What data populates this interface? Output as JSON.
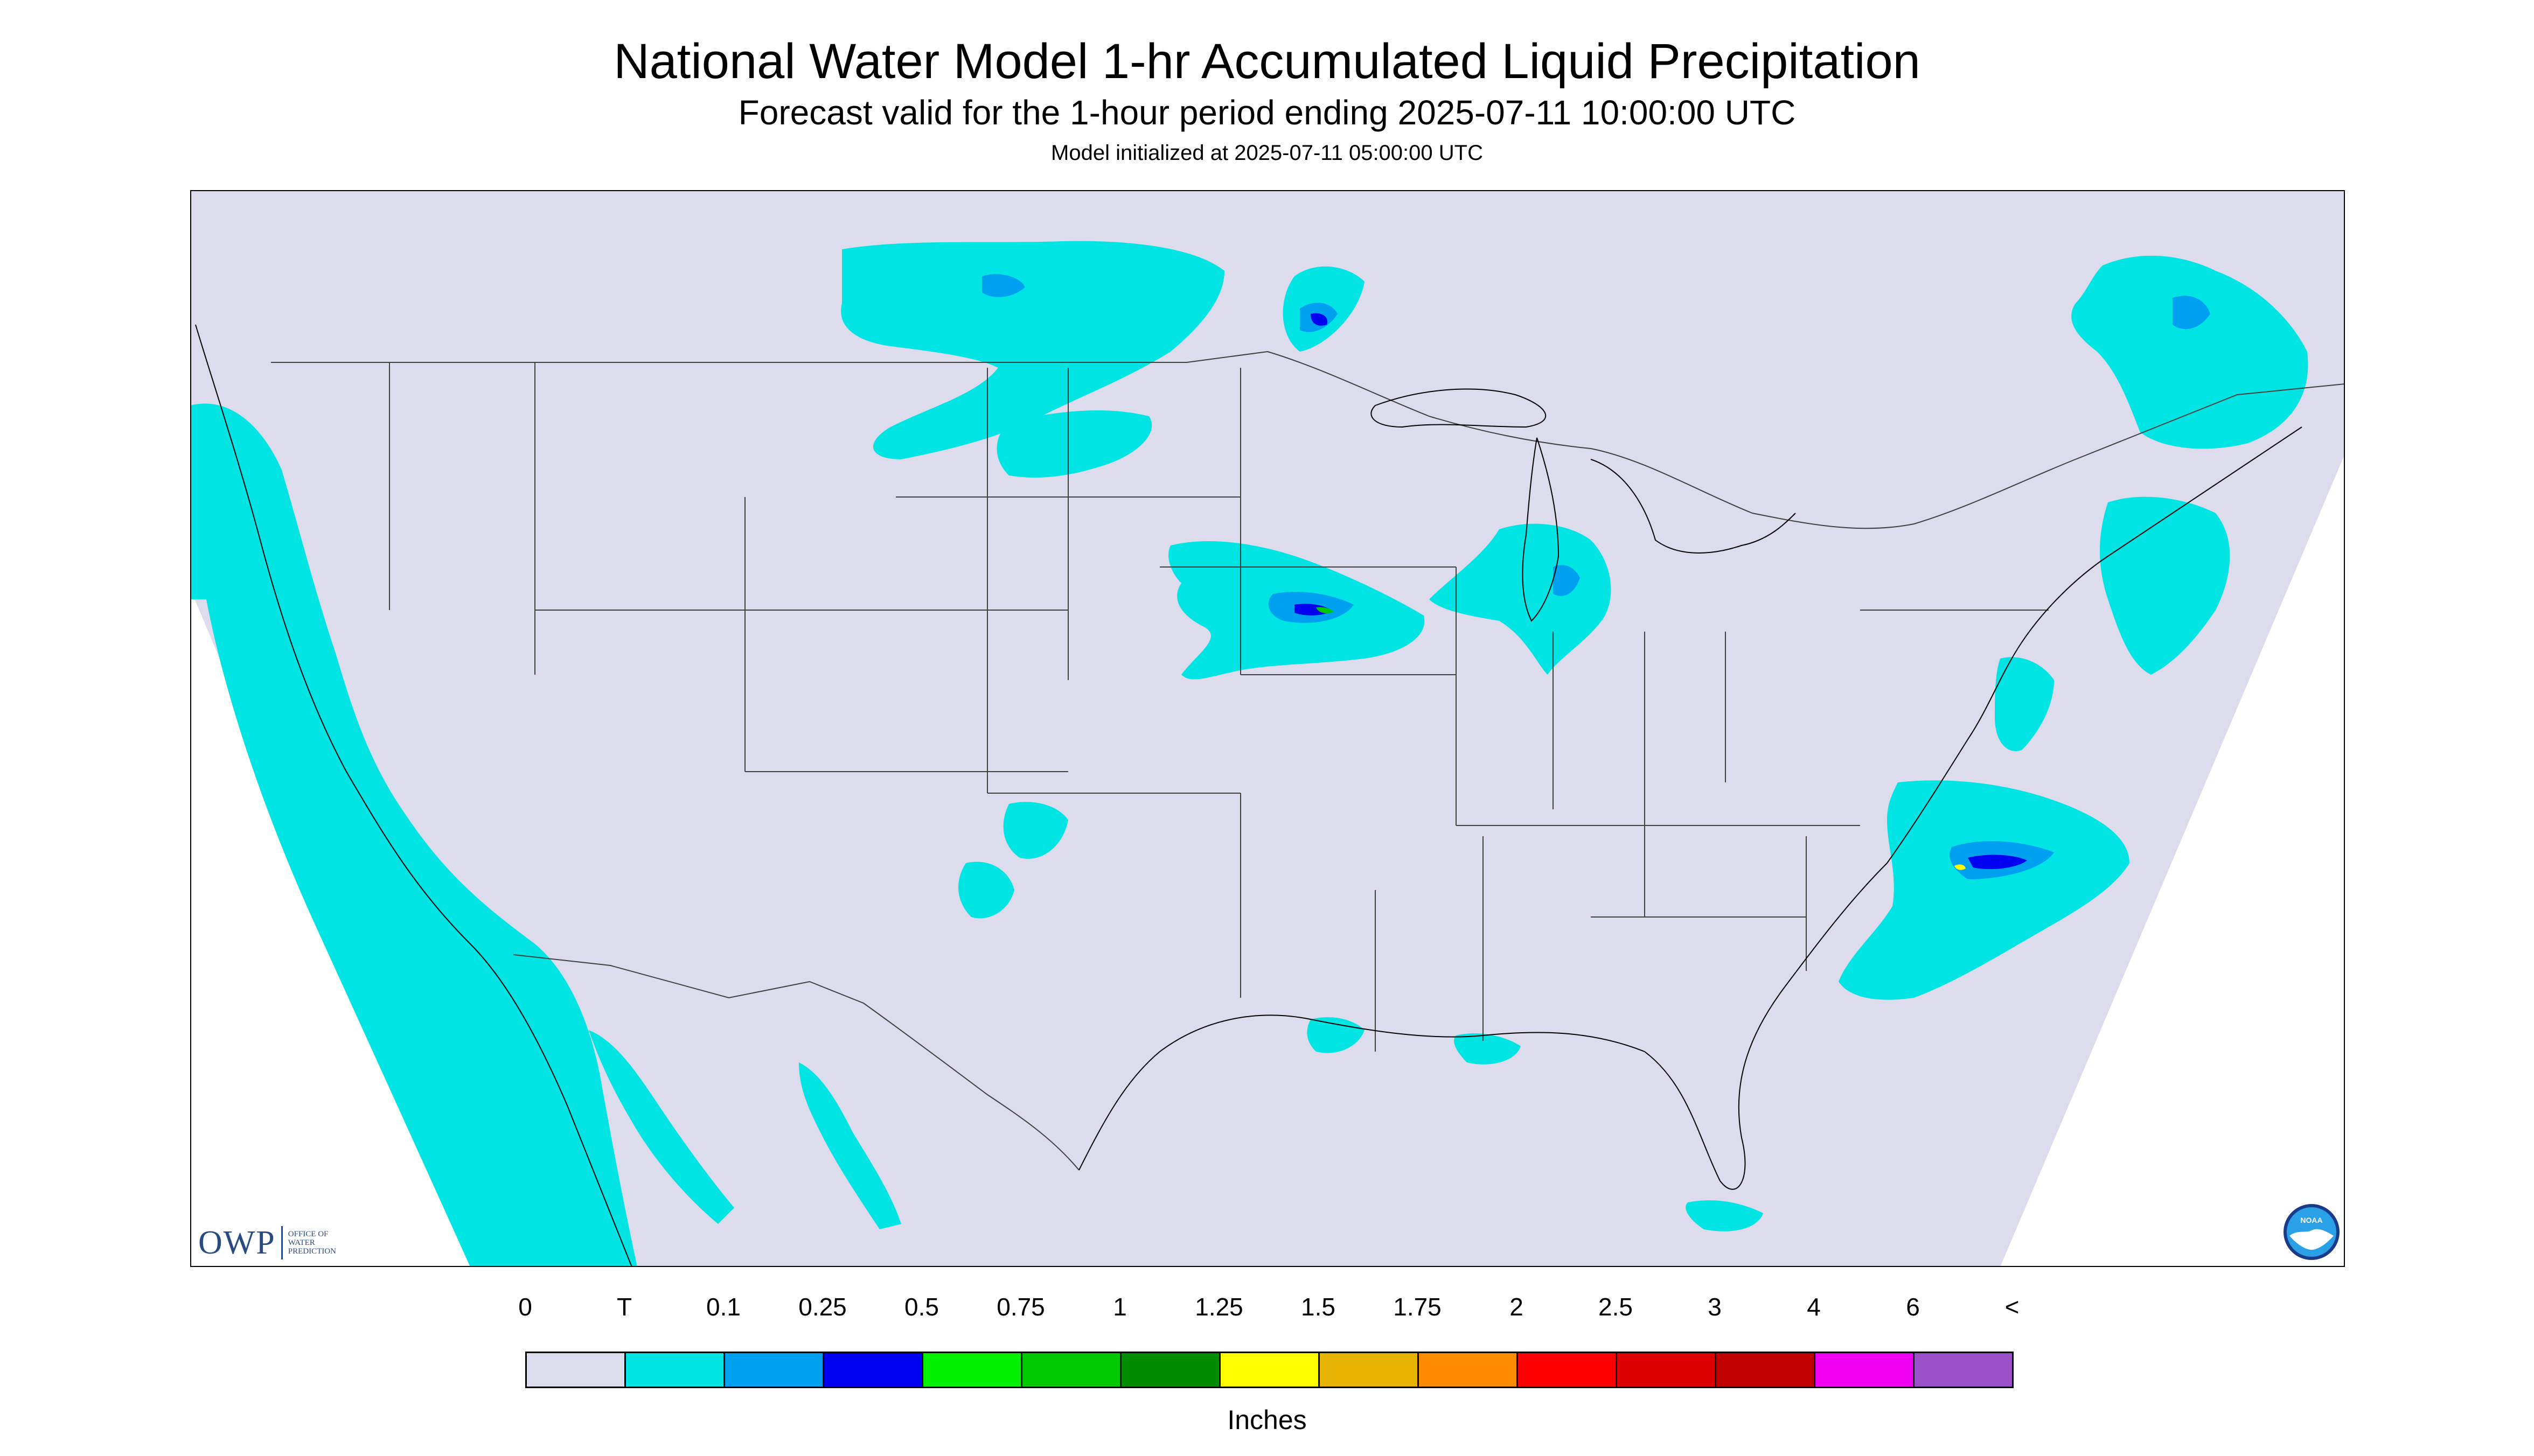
{
  "header": {
    "title": "National Water Model 1-hr Accumulated Liquid Precipitation",
    "subtitle": "Forecast valid for the 1-hour period ending 2025-07-11 10:00:00 UTC",
    "init": "Model initialized at 2025-07-11 05:00:00 UTC"
  },
  "map": {
    "projection": "lambert-conformal",
    "region": "CONUS",
    "background_color": "#dcdcec",
    "outside_color": "#ffffff",
    "boundary_color": "#404040",
    "coastline_color": "#000000"
  },
  "logos": {
    "owp_mark": "OWP",
    "owp_text": "OFFICE OF\nWATER\nPREDICTION",
    "noaa_text": "NOAA"
  },
  "legend": {
    "labels": [
      "0",
      "T",
      "0.1",
      "0.25",
      "0.5",
      "0.75",
      "1",
      "1.25",
      "1.5",
      "1.75",
      "2",
      "2.5",
      "3",
      "4",
      "6",
      "<"
    ],
    "colors": [
      "#dcdcec",
      "#00e4e4",
      "#00a0f0",
      "#0000f0",
      "#00f000",
      "#00c800",
      "#008c00",
      "#ffff00",
      "#e6b400",
      "#ff8c00",
      "#ff0000",
      "#dc0000",
      "#c00000",
      "#f000f0",
      "#9a50c8"
    ],
    "units": "Inches"
  }
}
